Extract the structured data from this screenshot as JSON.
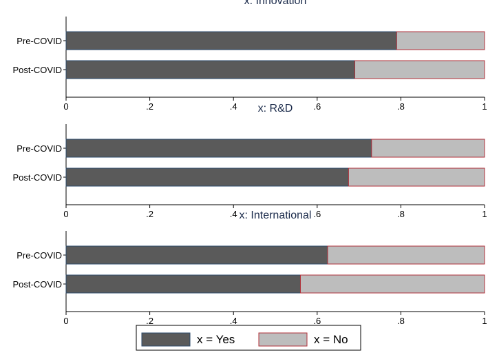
{
  "chart_data": {
    "type": "bar",
    "stacked": true,
    "orientation": "horizontal",
    "xlim": [
      0,
      1
    ],
    "x_ticks": [
      0,
      0.2,
      0.4,
      0.6,
      0.8,
      1
    ],
    "x_tick_labels": [
      "0",
      ".2",
      ".4",
      ".6",
      ".8",
      "1"
    ],
    "categories": [
      "Pre-COVID",
      "Post-COVID"
    ],
    "legend": {
      "placement": "bottom",
      "entries": [
        "x = Yes",
        "x = No"
      ]
    },
    "colors": {
      "yes_fill": "#5a5a5a",
      "yes_stroke": "#2b4a6b",
      "no_fill": "#bdbdbd",
      "no_stroke": "#b0303a",
      "title": "#1a2a4a",
      "axis": "#000000"
    },
    "panels": [
      {
        "title": "x: Innovation",
        "series": [
          {
            "name": "x = Yes",
            "values": [
              0.79,
              0.69
            ]
          },
          {
            "name": "x = No",
            "values": [
              0.21,
              0.31
            ]
          }
        ]
      },
      {
        "title": "x: R&D",
        "series": [
          {
            "name": "x = Yes",
            "values": [
              0.73,
              0.675
            ]
          },
          {
            "name": "x = No",
            "values": [
              0.27,
              0.325
            ]
          }
        ]
      },
      {
        "title": "x: International",
        "series": [
          {
            "name": "x = Yes",
            "values": [
              0.625,
              0.56
            ]
          },
          {
            "name": "x = No",
            "values": [
              0.375,
              0.44
            ]
          }
        ]
      }
    ]
  }
}
